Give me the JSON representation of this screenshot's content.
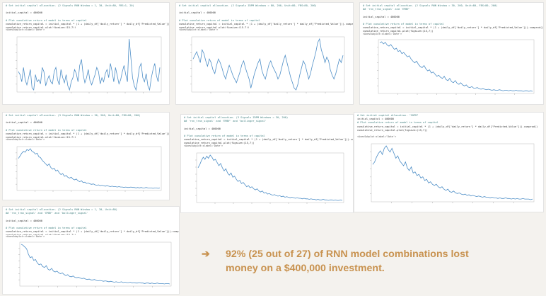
{
  "colors": {
    "accent": "#c8924f",
    "line": "#4f8fc7",
    "code_comment": "#3f7f7f",
    "code_text": "#333333",
    "background": "#f4f2ee"
  },
  "caption": {
    "arrow": "➔",
    "line1": "92% (25 out of 27) of RNN model combinations lost",
    "line2": "money on a $400,000 investment."
  },
  "panels": [
    {
      "code": [
        {
          "t": "cmt",
          "s": "# Set initial capital allocation. (2 Signals RNN Window = 1, 30, Unit=80, FBS=1, 20)"
        },
        {
          "t": "blank",
          "s": ""
        },
        {
          "t": "ln",
          "s": "initial_capital = 400000"
        },
        {
          "t": "blank",
          "s": ""
        },
        {
          "t": "cmt",
          "s": "# Plot cumulative return of model in terms of capital"
        },
        {
          "t": "ln",
          "s": "cumulative_return_capital = initial_capital * (1 + (daily_df['daily_return'] * daily_df['Predicted_Value'])).cumprod()"
        },
        {
          "t": "ln",
          "s": "cumulative_return_capital.plot(figsize=(15,7))"
        }
      ],
      "axes": "<AxesSubplot:xlabel='Date'>",
      "series": [
        58,
        55,
        48,
        62,
        50,
        45,
        52,
        60,
        42,
        40,
        55,
        48,
        50,
        46,
        62,
        58,
        44,
        50,
        54,
        48,
        46,
        58,
        62,
        50,
        45,
        60,
        52,
        47,
        55,
        44,
        40,
        48,
        52,
        60,
        56,
        48,
        64,
        70,
        55,
        47,
        52,
        60,
        49,
        45,
        50,
        55,
        62,
        58,
        46,
        52,
        48,
        56,
        60,
        52,
        66,
        58,
        48,
        62,
        54,
        46,
        50,
        58,
        64,
        55,
        48,
        90,
        72,
        52,
        44,
        40,
        50,
        62,
        66,
        52,
        48,
        56,
        44,
        40,
        52,
        60,
        66,
        54,
        48,
        62
      ]
    },
    {
      "code": [
        {
          "t": "cmt",
          "s": "# Set initial capital allocation. (2 Signals ZOPM Windows = 80, 200, Unit=80, FBS=80, 200)"
        },
        {
          "t": "blank",
          "s": ""
        },
        {
          "t": "ln",
          "s": "initial_capital = 400000"
        },
        {
          "t": "blank",
          "s": ""
        },
        {
          "t": "cmt",
          "s": "# Plot cumulative return of model in terms of capital"
        },
        {
          "t": "ln",
          "s": "cumulative_return_capital = initial_capital * (1 + (daily_df['daily_return'] * daily_df['Predicted_Value'])).cumprod()"
        },
        {
          "t": "ln",
          "s": "cumulative_return_capital.plot(figsize=(15,7))"
        }
      ],
      "axes": "<AxesSubplot:xlabel='Date'>",
      "series": [
        62,
        66,
        70,
        64,
        58,
        72,
        68,
        60,
        54,
        62,
        58,
        50,
        46,
        55,
        62,
        58,
        52,
        45,
        40,
        48,
        55,
        50,
        44,
        40,
        36,
        42,
        48,
        56,
        60,
        52,
        46,
        40,
        30,
        38,
        46,
        52,
        58,
        62,
        50,
        44,
        40,
        48,
        56,
        60,
        54,
        50,
        46,
        40,
        44,
        52,
        60,
        66,
        58,
        50,
        42,
        36,
        30,
        28,
        34,
        44,
        52,
        60,
        56,
        48,
        40,
        46,
        55,
        62,
        70,
        80,
        84,
        72,
        66,
        58,
        64,
        60,
        50,
        44,
        40,
        46,
        54,
        62,
        58,
        66
      ]
    },
    {
      "code": [
        {
          "t": "cmt",
          "s": "# Set initial capital allocation. (2 Signals RNN Window = 30, 200, Unit=80, FBS=80, 200)"
        },
        {
          "t": "cmt",
          "s": "## 'rnn_tran_signal' and 'EMBY'"
        },
        {
          "t": "blank",
          "s": ""
        },
        {
          "t": "ln",
          "s": "initial_capital = 400000"
        },
        {
          "t": "blank",
          "s": ""
        },
        {
          "t": "cmt",
          "s": "# Plot cumulative return of model in terms of capital"
        },
        {
          "t": "ln",
          "s": "cumulative_return_capital = initial_capital * (1 + (daily_df['daily_return'] * daily_df['Predicted_Value'])).cumprod()"
        },
        {
          "t": "ln",
          "s": "cumulative_return_capital.plot(figsize=(15,7))"
        }
      ],
      "axes": "<AxesSubplot:xlabel='Date'>",
      "series": [
        92,
        94,
        90,
        93,
        88,
        86,
        89,
        84,
        80,
        82,
        76,
        78,
        72,
        74,
        70,
        66,
        68,
        62,
        58,
        55,
        58,
        52,
        48,
        46,
        50,
        44,
        40,
        42,
        36,
        38,
        34,
        30,
        32,
        28,
        26,
        30,
        24,
        22,
        26,
        20,
        18,
        22,
        17,
        15,
        18,
        14,
        12,
        14,
        10,
        9,
        11,
        8,
        8,
        9,
        7,
        6,
        7,
        6,
        5,
        6,
        5,
        4,
        5,
        4,
        4,
        5,
        4,
        3,
        4,
        4,
        3,
        4,
        3,
        3,
        4,
        3,
        3,
        3,
        2,
        3,
        3,
        2,
        3,
        2
      ]
    },
    {
      "code": [
        {
          "t": "cmt",
          "s": "# Set initial capital allocation. (3 Signals RNN Window = 30, 200, Unit=80, FBS=80, 200)"
        },
        {
          "t": "blank",
          "s": ""
        },
        {
          "t": "ln",
          "s": "initial_capital = 400000"
        },
        {
          "t": "blank",
          "s": ""
        },
        {
          "t": "cmt",
          "s": "# Plot cumulative return of model in terms of capital"
        },
        {
          "t": "ln",
          "s": "cumulative_return_capital = initial_capital * (1 + (daily_df['daily_return'] * daily_df['Predicted_Value'])).cumprod()"
        },
        {
          "t": "ln",
          "s": "cumulative_return_capital.plot(figsize=(15,7))"
        }
      ],
      "axes": "<AxesSubplot:xlabel='Date'>",
      "series": [
        70,
        76,
        82,
        86,
        84,
        90,
        88,
        92,
        86,
        84,
        80,
        82,
        74,
        72,
        66,
        62,
        58,
        54,
        58,
        50,
        46,
        48,
        42,
        44,
        38,
        34,
        36,
        30,
        32,
        28,
        26,
        28,
        24,
        22,
        24,
        20,
        18,
        20,
        16,
        17,
        14,
        15,
        13,
        12,
        13,
        11,
        10,
        11,
        9,
        10,
        9,
        8,
        9,
        8,
        7,
        8,
        7,
        7,
        6,
        7,
        6,
        6,
        5,
        6,
        5,
        5,
        6,
        5,
        5,
        4,
        5,
        4,
        5,
        4,
        4,
        5,
        4,
        4,
        4,
        3,
        4,
        4,
        3,
        4
      ]
    },
    {
      "code": [
        {
          "t": "cmt",
          "s": "# Set initial capital allocation. (3 Signals ZOPM Windows = 30, 200)"
        },
        {
          "t": "cmt",
          "s": "## 'rnn_tran_signal' and 'EMBY' and 'bollinger_signal'"
        },
        {
          "t": "blank",
          "s": ""
        },
        {
          "t": "ln",
          "s": "initial_capital = 400000"
        },
        {
          "t": "blank",
          "s": ""
        },
        {
          "t": "cmt",
          "s": "# Plot cumulative return of model in terms of capital"
        },
        {
          "t": "ln",
          "s": "cumulative_return_capital = initial_capital * (1 + (daily_df['daily_return'] * daily_df['Predicted_Value'])).cumprod()"
        },
        {
          "t": "ln",
          "s": "cumulative_return_capital.plot(figsize=(15,7))"
        }
      ],
      "axes": "<AxesSubplot:xlabel='Date'>",
      "series": [
        66,
        72,
        80,
        86,
        82,
        88,
        84,
        90,
        86,
        80,
        82,
        76,
        70,
        74,
        66,
        60,
        64,
        56,
        52,
        56,
        48,
        50,
        44,
        40,
        42,
        36,
        38,
        34,
        30,
        32,
        28,
        30,
        26,
        24,
        26,
        22,
        20,
        22,
        18,
        19,
        16,
        17,
        15,
        14,
        15,
        13,
        12,
        13,
        11,
        12,
        10,
        11,
        10,
        9,
        10,
        9,
        8,
        9,
        8,
        8,
        7,
        8,
        7,
        7,
        6,
        7,
        6,
        6,
        5,
        6,
        5,
        5,
        6,
        5,
        5,
        4,
        5,
        5,
        4,
        5,
        4,
        4,
        5,
        4
      ]
    },
    {
      "code": [
        {
          "t": "cmt",
          "s": "# Set initial capital allocation. \"ZOPM\""
        },
        {
          "t": "ln",
          "s": "initial_capital = 400000"
        },
        {
          "t": "cmt",
          "s": "# Plot cumulative return of model in terms of capital"
        },
        {
          "t": "ln",
          "s": "cumulative_return_capital = initial_capital * (1 + (daily_df['daily_return'] * daily_df['Predicted_Value'])).cumprod()"
        },
        {
          "t": "ln",
          "s": "cumulative_return_capital.plot(figsize=(15,7))"
        }
      ],
      "axes": "<AxesSubplot:xlabel='Date'>",
      "series": [
        60,
        64,
        72,
        78,
        82,
        76,
        86,
        90,
        84,
        80,
        86,
        78,
        70,
        74,
        66,
        62,
        58,
        64,
        54,
        50,
        56,
        46,
        48,
        42,
        44,
        38,
        40,
        34,
        36,
        30,
        32,
        28,
        26,
        28,
        24,
        22,
        24,
        20,
        18,
        20,
        16,
        15,
        17,
        14,
        13,
        14,
        12,
        11,
        12,
        10,
        11,
        9,
        10,
        9,
        8,
        9,
        8,
        7,
        8,
        7,
        7,
        6,
        7,
        6,
        6,
        5,
        6,
        5,
        5,
        6,
        5,
        5,
        4,
        5,
        4,
        5,
        4,
        4,
        5,
        4,
        4,
        4,
        3,
        4
      ]
    },
    {
      "code": [
        {
          "t": "cmt",
          "s": "# Set initial capital allocation. (2 Signals RNN Window = 1, 30, Unit=80)"
        },
        {
          "t": "cmt",
          "s": "## 'rnn_tran_signal' and 'EMBY' and 'bollinger_signal'"
        },
        {
          "t": "blank",
          "s": ""
        },
        {
          "t": "ln",
          "s": "initial_capital = 400000"
        },
        {
          "t": "blank",
          "s": ""
        },
        {
          "t": "cmt",
          "s": "# Plot cumulative return of model in terms of capital"
        },
        {
          "t": "ln",
          "s": "cumulative_return_capital = initial_capital * (1 + (daily_df['daily_return'] * daily_df['Predicted_Value'])).cumprod()"
        },
        {
          "t": "ln",
          "s": "cumulative_return_capital.plot(figsize=(15,7))"
        }
      ],
      "axes": "<AxesSubplot:xlabel='Date'>",
      "series": [
        92,
        90,
        86,
        82,
        70,
        62,
        64,
        56,
        58,
        50,
        46,
        48,
        42,
        40,
        44,
        36,
        34,
        38,
        32,
        30,
        32,
        28,
        26,
        28,
        24,
        22,
        24,
        20,
        19,
        21,
        18,
        17,
        18,
        16,
        15,
        16,
        14,
        13,
        14,
        12,
        12,
        13,
        11,
        10,
        11,
        10,
        9,
        10,
        9,
        8,
        9,
        8,
        7,
        8,
        7,
        7,
        8,
        6,
        7,
        6,
        6,
        7,
        5,
        6,
        5,
        5,
        6,
        5,
        5,
        4,
        5,
        5,
        4,
        5,
        4,
        4,
        5,
        4,
        4,
        4,
        3,
        4,
        4,
        3
      ]
    }
  ]
}
